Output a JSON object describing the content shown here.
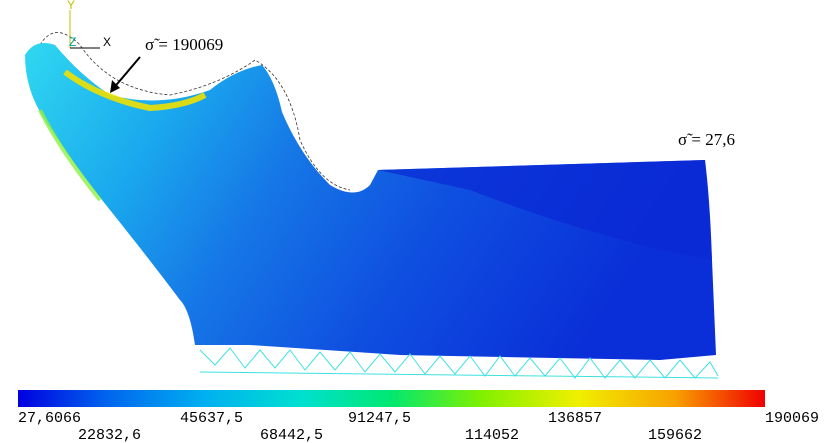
{
  "annotations": {
    "max": "σ̃ = 190069",
    "min": "σ̃ = 27,6"
  },
  "axes": {
    "y": "Y",
    "z": "Z",
    "x": "X"
  },
  "legend": {
    "labels": [
      "27,6066",
      "22832,6",
      "45637,5",
      "68442,5",
      "91247,5",
      "114052",
      "136857",
      "159662",
      "190069"
    ]
  }
}
